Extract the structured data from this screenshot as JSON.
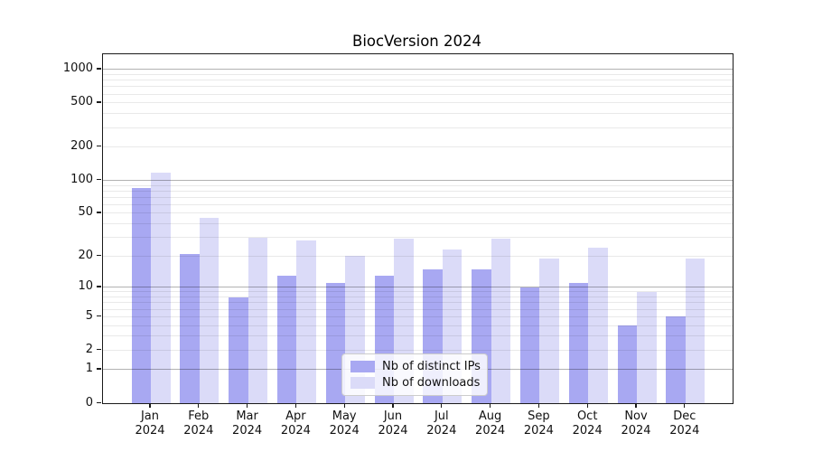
{
  "title": "BiocVersion 2024",
  "chart_data": {
    "type": "bar",
    "title": "BiocVersion 2024",
    "categories": [
      "Jan",
      "Feb",
      "Mar",
      "Apr",
      "May",
      "Jun",
      "Jul",
      "Aug",
      "Sep",
      "Oct",
      "Nov",
      "Dec"
    ],
    "year_label": "2024",
    "series": [
      {
        "name": "Nb of distinct IPs",
        "color": "#a8a8f2",
        "values": [
          85,
          21,
          8,
          13,
          11,
          13,
          15,
          15,
          10,
          11,
          4,
          5
        ]
      },
      {
        "name": "Nb of downloads",
        "color": "#dbdbf8",
        "values": [
          118,
          45,
          30,
          28,
          20,
          29,
          23,
          29,
          19,
          24,
          9,
          19
        ]
      }
    ],
    "xlabel": "",
    "ylabel": "",
    "y_scale": "log1p",
    "y_ticks": [
      0,
      1,
      2,
      5,
      10,
      20,
      50,
      100,
      200,
      500,
      1000
    ],
    "y_tick_labels": [
      "0",
      "1",
      "2",
      "5",
      "10",
      "20",
      "50",
      "100",
      "200",
      "500",
      "1000"
    ],
    "y_major_gridlines": [
      1,
      10,
      100,
      1000
    ],
    "y_minor_gridlines": [
      2,
      3,
      4,
      5,
      6,
      7,
      8,
      9,
      20,
      30,
      40,
      50,
      60,
      70,
      80,
      90,
      200,
      300,
      400,
      500,
      600,
      700,
      800,
      900
    ],
    "ylim": [
      0,
      1373
    ],
    "grid": true,
    "legend_position": "lower center",
    "colors": {
      "spine": "#1a1a1a",
      "major_grid": "#b0b0b0",
      "minor_grid": "#e8e8e8",
      "background": "#ffffff"
    }
  }
}
